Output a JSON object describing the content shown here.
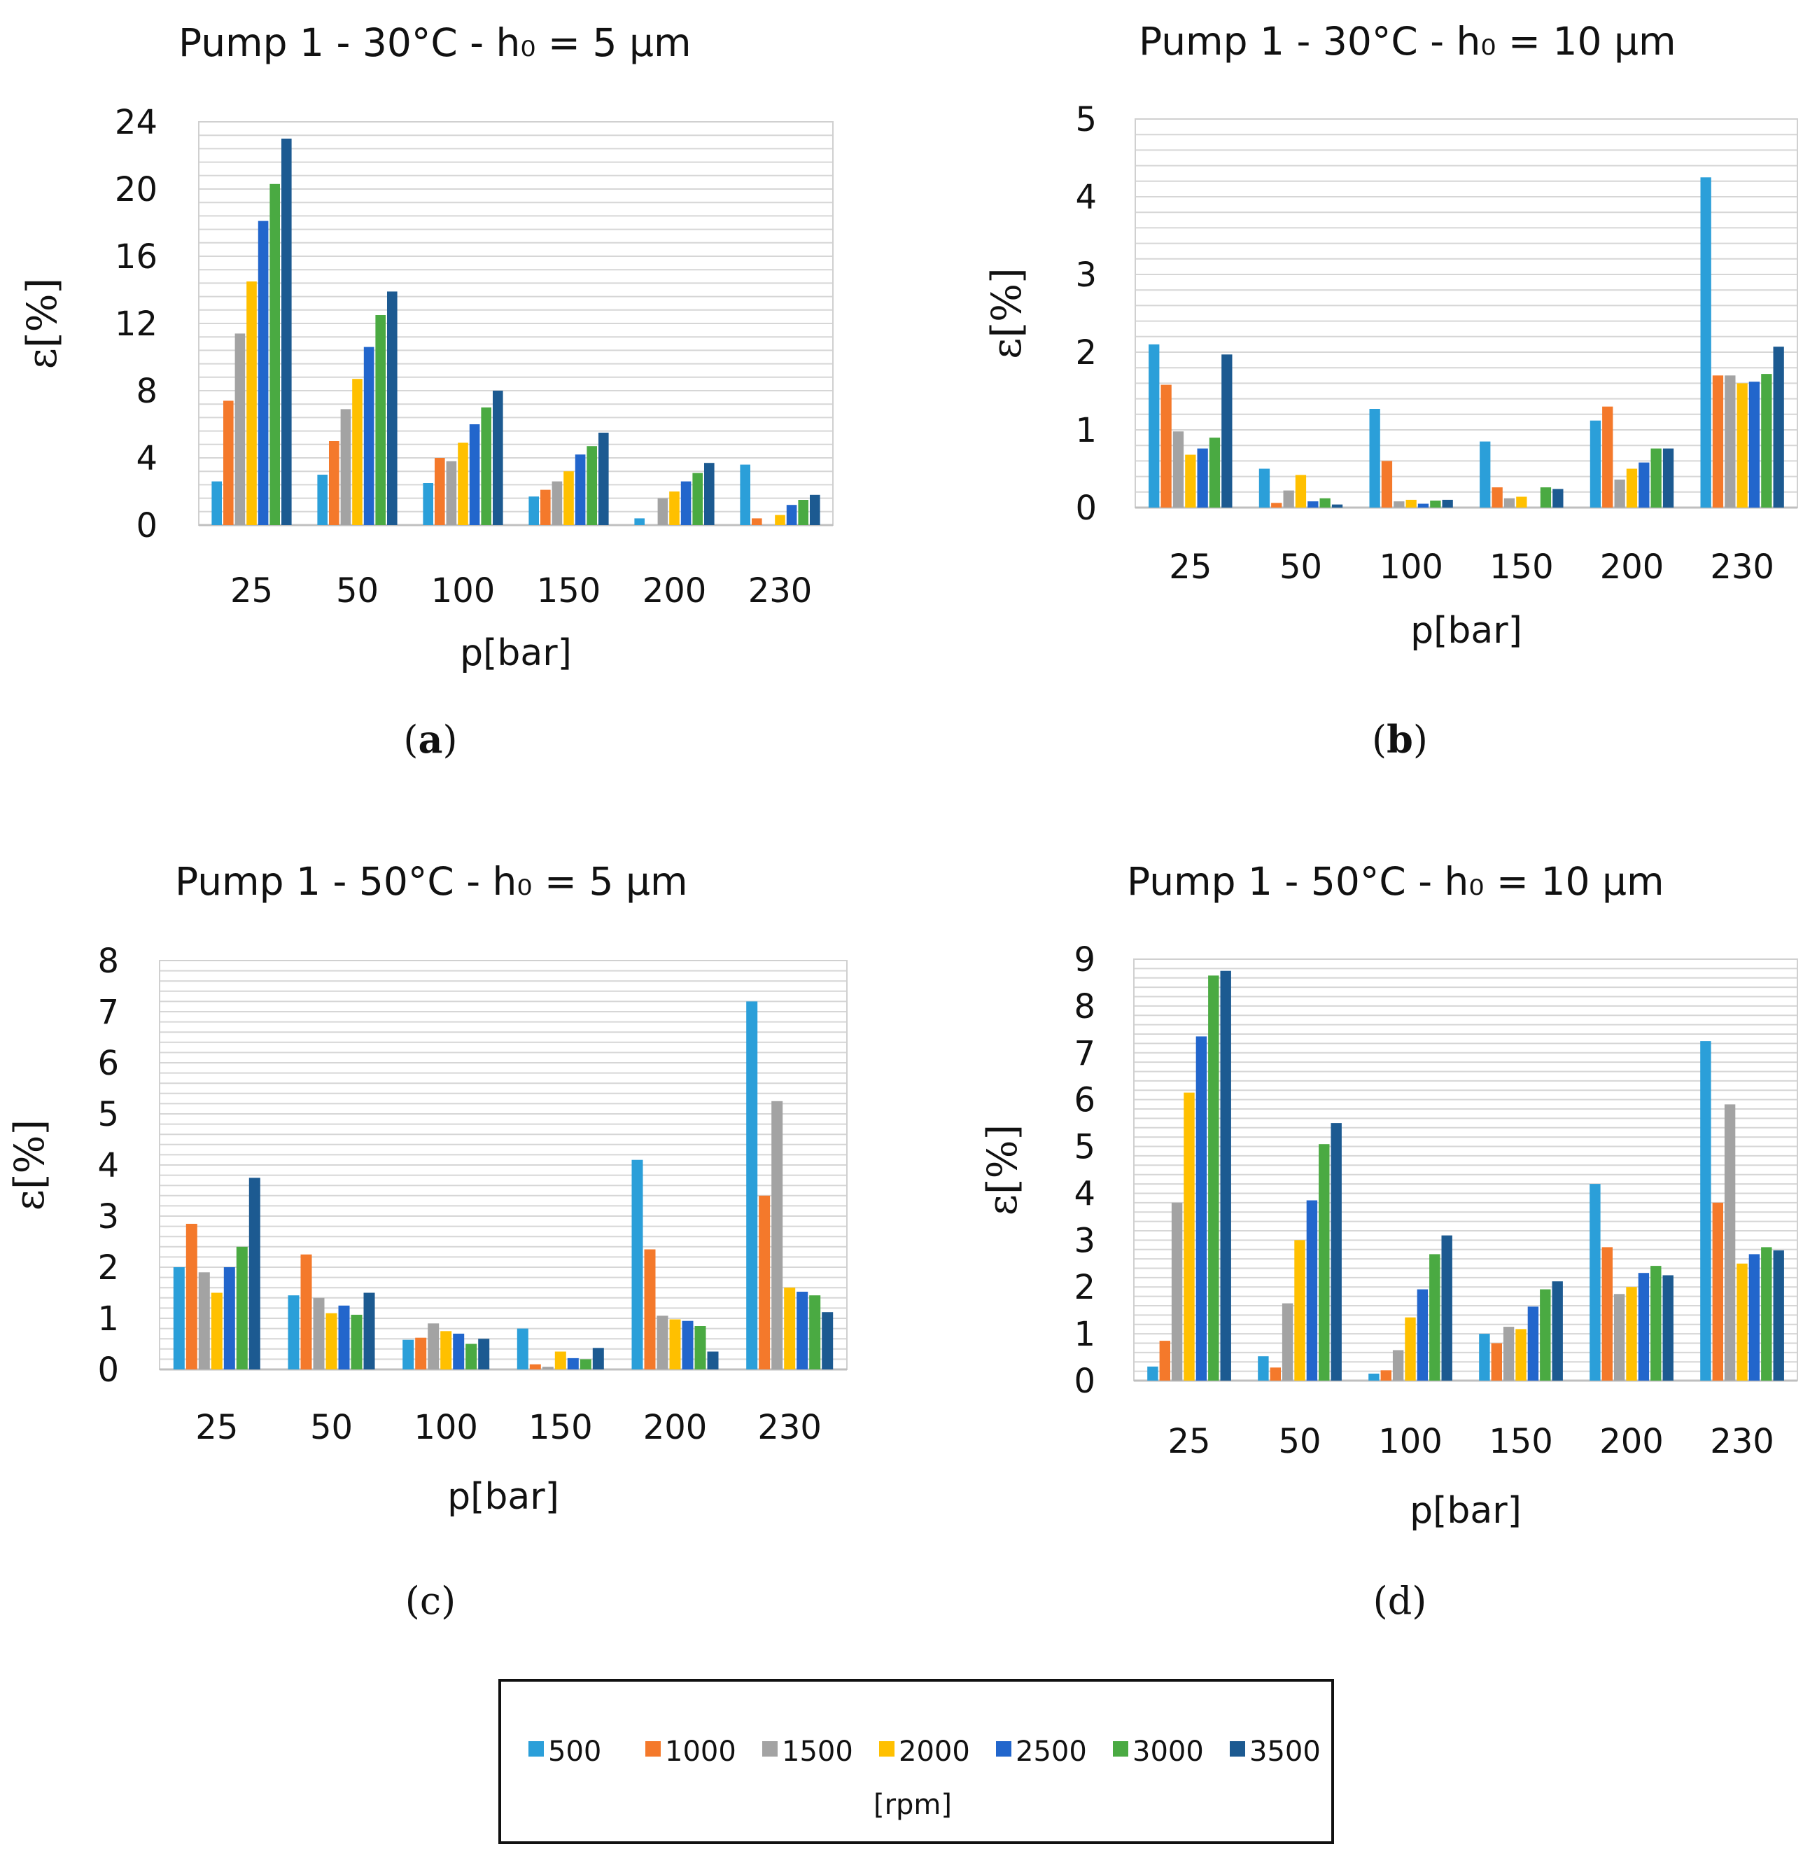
{
  "chart_data": [
    {
      "type": "bar",
      "panel": "(a)",
      "caption_letter": "a",
      "caption_bold": true,
      "title": "Pump 1 - 30°C - h₀ = 5 µm",
      "xlabel": "p[bar]",
      "ylabel": "ε[%]",
      "ylim": [
        0,
        24
      ],
      "yticks": [
        "0",
        "4",
        "8",
        "12",
        "16",
        "20",
        "24"
      ],
      "categories": [
        "25",
        "50",
        "100",
        "150",
        "200",
        "230"
      ],
      "series": [
        {
          "name": "500",
          "values": [
            2.6,
            3.0,
            2.5,
            1.7,
            0.4,
            3.6
          ]
        },
        {
          "name": "1000",
          "values": [
            7.4,
            5.0,
            4.0,
            2.1,
            0.0,
            0.4
          ]
        },
        {
          "name": "1500",
          "values": [
            11.4,
            6.9,
            3.8,
            2.6,
            1.6,
            0.0
          ]
        },
        {
          "name": "2000",
          "values": [
            14.5,
            8.7,
            4.9,
            3.2,
            2.0,
            0.6
          ]
        },
        {
          "name": "2500",
          "values": [
            18.1,
            10.6,
            6.0,
            4.2,
            2.6,
            1.2
          ]
        },
        {
          "name": "3000",
          "values": [
            20.3,
            12.5,
            7.0,
            4.7,
            3.1,
            1.5
          ]
        },
        {
          "name": "3500",
          "values": [
            23.0,
            13.9,
            8.0,
            5.5,
            3.7,
            1.8
          ]
        }
      ]
    },
    {
      "type": "bar",
      "panel": "(b)",
      "caption_letter": "b",
      "caption_bold": true,
      "title": "Pump 1 - 30°C - h₀ = 10 µm",
      "xlabel": "p[bar]",
      "ylabel": "ε[%]",
      "ylim": [
        0,
        5
      ],
      "yticks": [
        "0",
        "1",
        "2",
        "3",
        "4",
        "5"
      ],
      "categories": [
        "25",
        "50",
        "100",
        "150",
        "200",
        "230"
      ],
      "series": [
        {
          "name": "500",
          "values": [
            2.1,
            0.5,
            1.27,
            0.85,
            1.12,
            4.25
          ]
        },
        {
          "name": "1000",
          "values": [
            1.58,
            0.06,
            0.6,
            0.26,
            1.3,
            1.7
          ]
        },
        {
          "name": "1500",
          "values": [
            0.98,
            0.22,
            0.08,
            0.12,
            0.36,
            1.7
          ]
        },
        {
          "name": "2000",
          "values": [
            0.68,
            0.42,
            0.1,
            0.14,
            0.5,
            1.6
          ]
        },
        {
          "name": "2500",
          "values": [
            0.76,
            0.08,
            0.05,
            0.0,
            0.58,
            1.62
          ]
        },
        {
          "name": "3000",
          "values": [
            0.9,
            0.12,
            0.09,
            0.26,
            0.76,
            1.72
          ]
        },
        {
          "name": "3500",
          "values": [
            1.97,
            0.04,
            0.1,
            0.24,
            0.76,
            2.07
          ]
        }
      ]
    },
    {
      "type": "bar",
      "panel": "(c)",
      "caption_letter": "c",
      "caption_bold": false,
      "title": "Pump 1 - 50°C - h₀ = 5 µm",
      "xlabel": "p[bar]",
      "ylabel": "ε[%]",
      "ylim": [
        0,
        8
      ],
      "yticks": [
        "0",
        "1",
        "2",
        "3",
        "4",
        "5",
        "6",
        "7",
        "8"
      ],
      "categories": [
        "25",
        "50",
        "100",
        "150",
        "200",
        "230"
      ],
      "series": [
        {
          "name": "500",
          "values": [
            2.0,
            1.45,
            0.58,
            0.8,
            4.1,
            7.2
          ]
        },
        {
          "name": "1000",
          "values": [
            2.85,
            2.25,
            0.62,
            0.1,
            2.35,
            3.4
          ]
        },
        {
          "name": "1500",
          "values": [
            1.9,
            1.4,
            0.9,
            0.05,
            1.05,
            5.25
          ]
        },
        {
          "name": "2000",
          "values": [
            1.5,
            1.1,
            0.75,
            0.35,
            0.98,
            1.6
          ]
        },
        {
          "name": "2500",
          "values": [
            2.0,
            1.25,
            0.7,
            0.22,
            0.95,
            1.52
          ]
        },
        {
          "name": "3000",
          "values": [
            2.4,
            1.07,
            0.5,
            0.2,
            0.85,
            1.45
          ]
        },
        {
          "name": "3500",
          "values": [
            3.75,
            1.5,
            0.6,
            0.42,
            0.35,
            1.12
          ]
        }
      ]
    },
    {
      "type": "bar",
      "panel": "(d)",
      "caption_letter": "d",
      "caption_bold": false,
      "title": "Pump 1 - 50°C - h₀ = 10 µm",
      "xlabel": "p[bar]",
      "ylabel": "ε[%]",
      "ylim": [
        0,
        9
      ],
      "yticks": [
        "0",
        "1",
        "2",
        "3",
        "4",
        "5",
        "6",
        "7",
        "8",
        "9"
      ],
      "categories": [
        "25",
        "50",
        "100",
        "150",
        "200",
        "230"
      ],
      "series": [
        {
          "name": "500",
          "values": [
            0.3,
            0.52,
            0.15,
            1.0,
            4.2,
            7.25
          ]
        },
        {
          "name": "1000",
          "values": [
            0.85,
            0.28,
            0.22,
            0.8,
            2.85,
            3.8
          ]
        },
        {
          "name": "1500",
          "values": [
            3.8,
            1.65,
            0.65,
            1.15,
            1.85,
            5.9
          ]
        },
        {
          "name": "2000",
          "values": [
            6.15,
            3.0,
            1.35,
            1.1,
            2.0,
            2.5
          ]
        },
        {
          "name": "2500",
          "values": [
            7.35,
            3.85,
            1.95,
            1.58,
            2.3,
            2.7
          ]
        },
        {
          "name": "3000",
          "values": [
            8.65,
            5.05,
            2.7,
            1.95,
            2.45,
            2.85
          ]
        },
        {
          "name": "3500",
          "values": [
            8.75,
            5.5,
            3.1,
            2.12,
            2.25,
            2.78
          ]
        }
      ]
    }
  ],
  "legend": {
    "items": [
      "500",
      "1000",
      "1500",
      "2000",
      "2500",
      "3000",
      "3500"
    ],
    "unit": "[rpm]"
  },
  "colors": {
    "500": "#2b9fd9",
    "1000": "#f4792b",
    "1500": "#a3a3a3",
    "2000": "#ffc000",
    "2500": "#2266cc",
    "3000": "#4aaa42",
    "3500": "#1c5a91"
  }
}
